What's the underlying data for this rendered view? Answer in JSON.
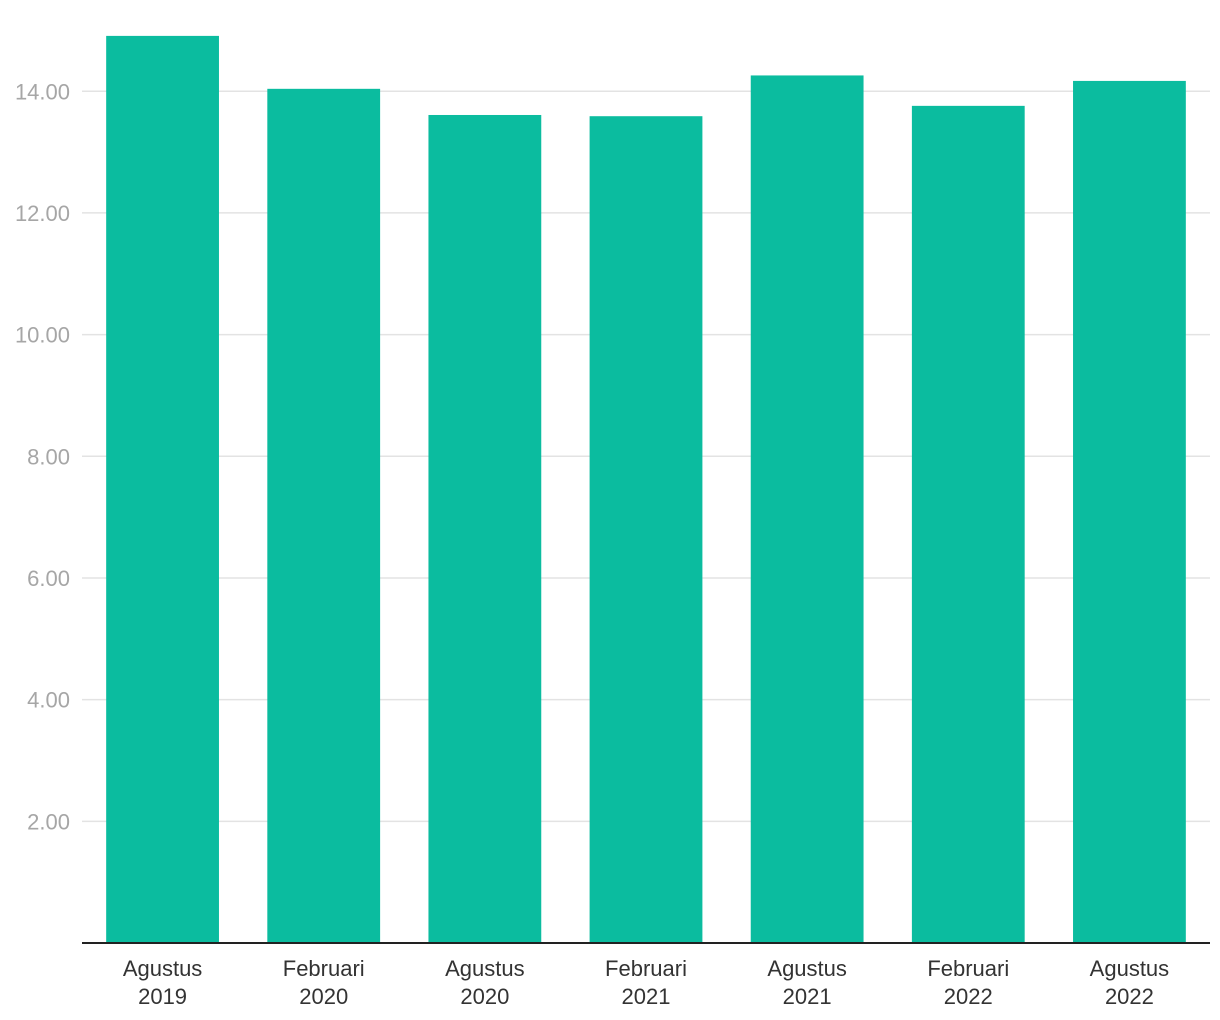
{
  "chart_data": {
    "type": "bar",
    "title": "",
    "xlabel": "",
    "ylabel": "",
    "categories": [
      [
        "Agustus",
        "2019"
      ],
      [
        "Februari",
        "2020"
      ],
      [
        "Agustus",
        "2020"
      ],
      [
        "Februari",
        "2021"
      ],
      [
        "Agustus",
        "2021"
      ],
      [
        "Februari",
        "2022"
      ],
      [
        "Agustus",
        "2022"
      ]
    ],
    "values": [
      14.91,
      14.04,
      13.61,
      13.59,
      14.26,
      13.76,
      14.17
    ],
    "ylim": [
      0,
      15.5
    ],
    "yticks": [
      2,
      4,
      6,
      8,
      10,
      12,
      14
    ],
    "ytick_labels": [
      "2.00",
      "4.00",
      "6.00",
      "8.00",
      "10.00",
      "12.00",
      "14.00"
    ],
    "bar_color": "#0bbc9f",
    "grid": true,
    "legend": "none"
  }
}
